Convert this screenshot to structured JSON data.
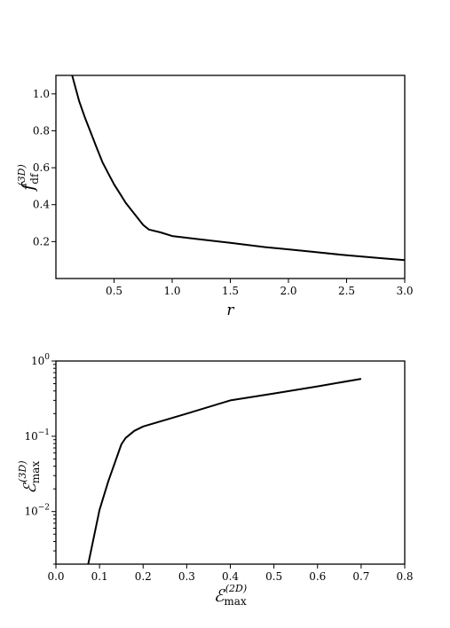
{
  "chart_data": [
    {
      "type": "line",
      "xlim": [
        0,
        3.0
      ],
      "ylim": [
        0,
        1.1
      ],
      "xticks": [
        "0.5",
        "1.0",
        "1.5",
        "2.0",
        "2.5",
        "3.0"
      ],
      "yticks": [
        "0.2",
        "0.4",
        "0.6",
        "0.8",
        "1.0"
      ],
      "xlabel": "r",
      "ylabel": {
        "base": "f",
        "sub": "df",
        "sup": "(3D)"
      },
      "grid": false,
      "series": [
        {
          "x": [
            0.14,
            0.2,
            0.25,
            0.3,
            0.35,
            0.4,
            0.45,
            0.5,
            0.55,
            0.6,
            0.65,
            0.7,
            0.75,
            0.8,
            0.9,
            1.0,
            1.2,
            1.5,
            1.8,
            2.0,
            2.2,
            2.5,
            2.8,
            3.0
          ],
          "y": [
            1.1,
            0.96,
            0.87,
            0.79,
            0.71,
            0.63,
            0.57,
            0.51,
            0.46,
            0.41,
            0.37,
            0.33,
            0.29,
            0.265,
            0.25,
            0.23,
            0.215,
            0.193,
            0.17,
            0.158,
            0.145,
            0.126,
            0.11,
            0.1
          ]
        }
      ]
    },
    {
      "type": "line",
      "xlim": [
        0.0,
        0.8
      ],
      "ylim": [
        0.002,
        1.0
      ],
      "yscale": "log",
      "xticks": [
        "0.0",
        "0.1",
        "0.2",
        "0.3",
        "0.4",
        "0.5",
        "0.6",
        "0.7",
        "0.8"
      ],
      "yticks": [
        {
          "base": "10",
          "exp": "0",
          "value": 1
        },
        {
          "base": "10",
          "exp": "−1",
          "value": 0.1
        },
        {
          "base": "10",
          "exp": "−2",
          "value": 0.01
        }
      ],
      "xlabel": {
        "base": "ℰ",
        "sub": "max",
        "sup": "(2D)"
      },
      "ylabel": {
        "base": "ℰ",
        "sub": "max",
        "sup": "(3D)"
      },
      "grid": false,
      "series": [
        {
          "x": [
            0.074,
            0.1,
            0.12,
            0.15,
            0.16,
            0.18,
            0.2,
            0.3,
            0.4,
            0.5,
            0.6,
            0.7
          ],
          "y": [
            0.002,
            0.0105,
            0.025,
            0.078,
            0.095,
            0.118,
            0.135,
            0.2,
            0.3,
            0.37,
            0.46,
            0.58
          ]
        }
      ]
    }
  ]
}
